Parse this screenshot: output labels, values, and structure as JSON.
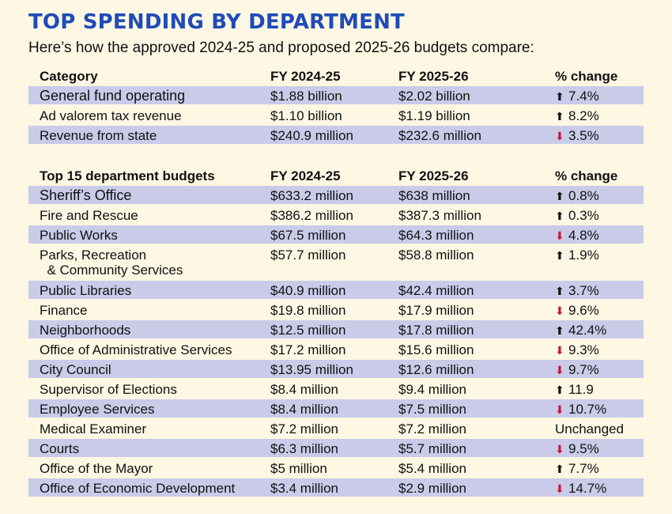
{
  "title": "TOP SPENDING BY DEPARTMENT",
  "subtitle": "Here’s how the approved 2024-25 and proposed 2025-26 budgets compare:",
  "colors": {
    "title": "#1f4bb8",
    "shade": "#c9cbe9",
    "background": "#fdf7e3",
    "down_arrow": "#c8143c"
  },
  "summary": {
    "headers": [
      "Category",
      "FY 2024-25",
      "FY 2025-26",
      "% change"
    ],
    "rows": [
      {
        "name": "General fund operating",
        "fy2425": "$1.88 billion",
        "fy2526": "$2.02 billion",
        "dir": "up",
        "change": "7.4%"
      },
      {
        "name": "Ad valorem tax revenue",
        "fy2425": "$1.10 billion",
        "fy2526": " $1.19 billion",
        "dir": "up",
        "change": "8.2%"
      },
      {
        "name": "Revenue from state",
        "fy2425": "$240.9 million",
        "fy2526": "$232.6 million",
        "dir": "down",
        "change": "3.5%"
      }
    ]
  },
  "departments": {
    "headers": [
      "Top 15 department budgets",
      "FY 2024-25",
      "FY 2025-26",
      "% change"
    ],
    "rows": [
      {
        "name": "Sheriff’s Office",
        "fy2425": "$633.2 million",
        "fy2526": "$638 million",
        "dir": "up",
        "change": "0.8%"
      },
      {
        "name": "Fire and Rescue",
        "fy2425": "$386.2 million",
        "fy2526": "$387.3 million",
        "dir": "up",
        "change": "0.3%"
      },
      {
        "name": "Public Works",
        "fy2425": "$67.5 million",
        "fy2526": "$64.3 million",
        "dir": "down",
        "change": "4.8%"
      },
      {
        "name": "Parks, Recreation & Community Services",
        "fy2425": "$57.7 million",
        "fy2526": "$58.8 million",
        "dir": "up",
        "change": "1.9%"
      },
      {
        "name": "Public Libraries",
        "fy2425": "$40.9 million",
        "fy2526": "$42.4 million",
        "dir": "up",
        "change": "3.7%"
      },
      {
        "name": "Finance",
        "fy2425": "$19.8 million",
        "fy2526": "$17.9 million",
        "dir": "down",
        "change": "9.6%"
      },
      {
        "name": "Neighborhoods",
        "fy2425": "$12.5 million",
        "fy2526": "$17.8 million",
        "dir": "up",
        "change": "42.4%"
      },
      {
        "name": "Office of Administrative Services",
        "fy2425": "$17.2 million",
        "fy2526": "$15.6 million",
        "dir": "down",
        "change": "9.3%"
      },
      {
        "name": "City Council",
        "fy2425": "$13.95 million",
        "fy2526": "$12.6 million",
        "dir": "down",
        "change": "9.7%"
      },
      {
        "name": "Supervisor of Elections",
        "fy2425": "$8.4 million",
        "fy2526": "$9.4 million",
        "dir": "up",
        "change": "11.9"
      },
      {
        "name": "Employee Services",
        "fy2425": "$8.4 million",
        "fy2526": "$7.5 million",
        "dir": "down",
        "change": "10.7%"
      },
      {
        "name": "Medical Examiner",
        "fy2425": "$7.2 million",
        "fy2526": "$7.2 million",
        "dir": "none",
        "change": "Unchanged"
      },
      {
        "name": "Courts",
        "fy2425": "$6.3 million",
        "fy2526": "$5.7 million",
        "dir": "down",
        "change": "9.5%"
      },
      {
        "name": "Office of the Mayor",
        "fy2425": "$5 million",
        "fy2526": "$5.4 million",
        "dir": "up",
        "change": "7.7%"
      },
      {
        "name": "Office of Economic Development",
        "fy2425": "$3.4 million",
        "fy2526": "$2.9 million",
        "dir": "down",
        "change": "14.7%"
      }
    ]
  }
}
